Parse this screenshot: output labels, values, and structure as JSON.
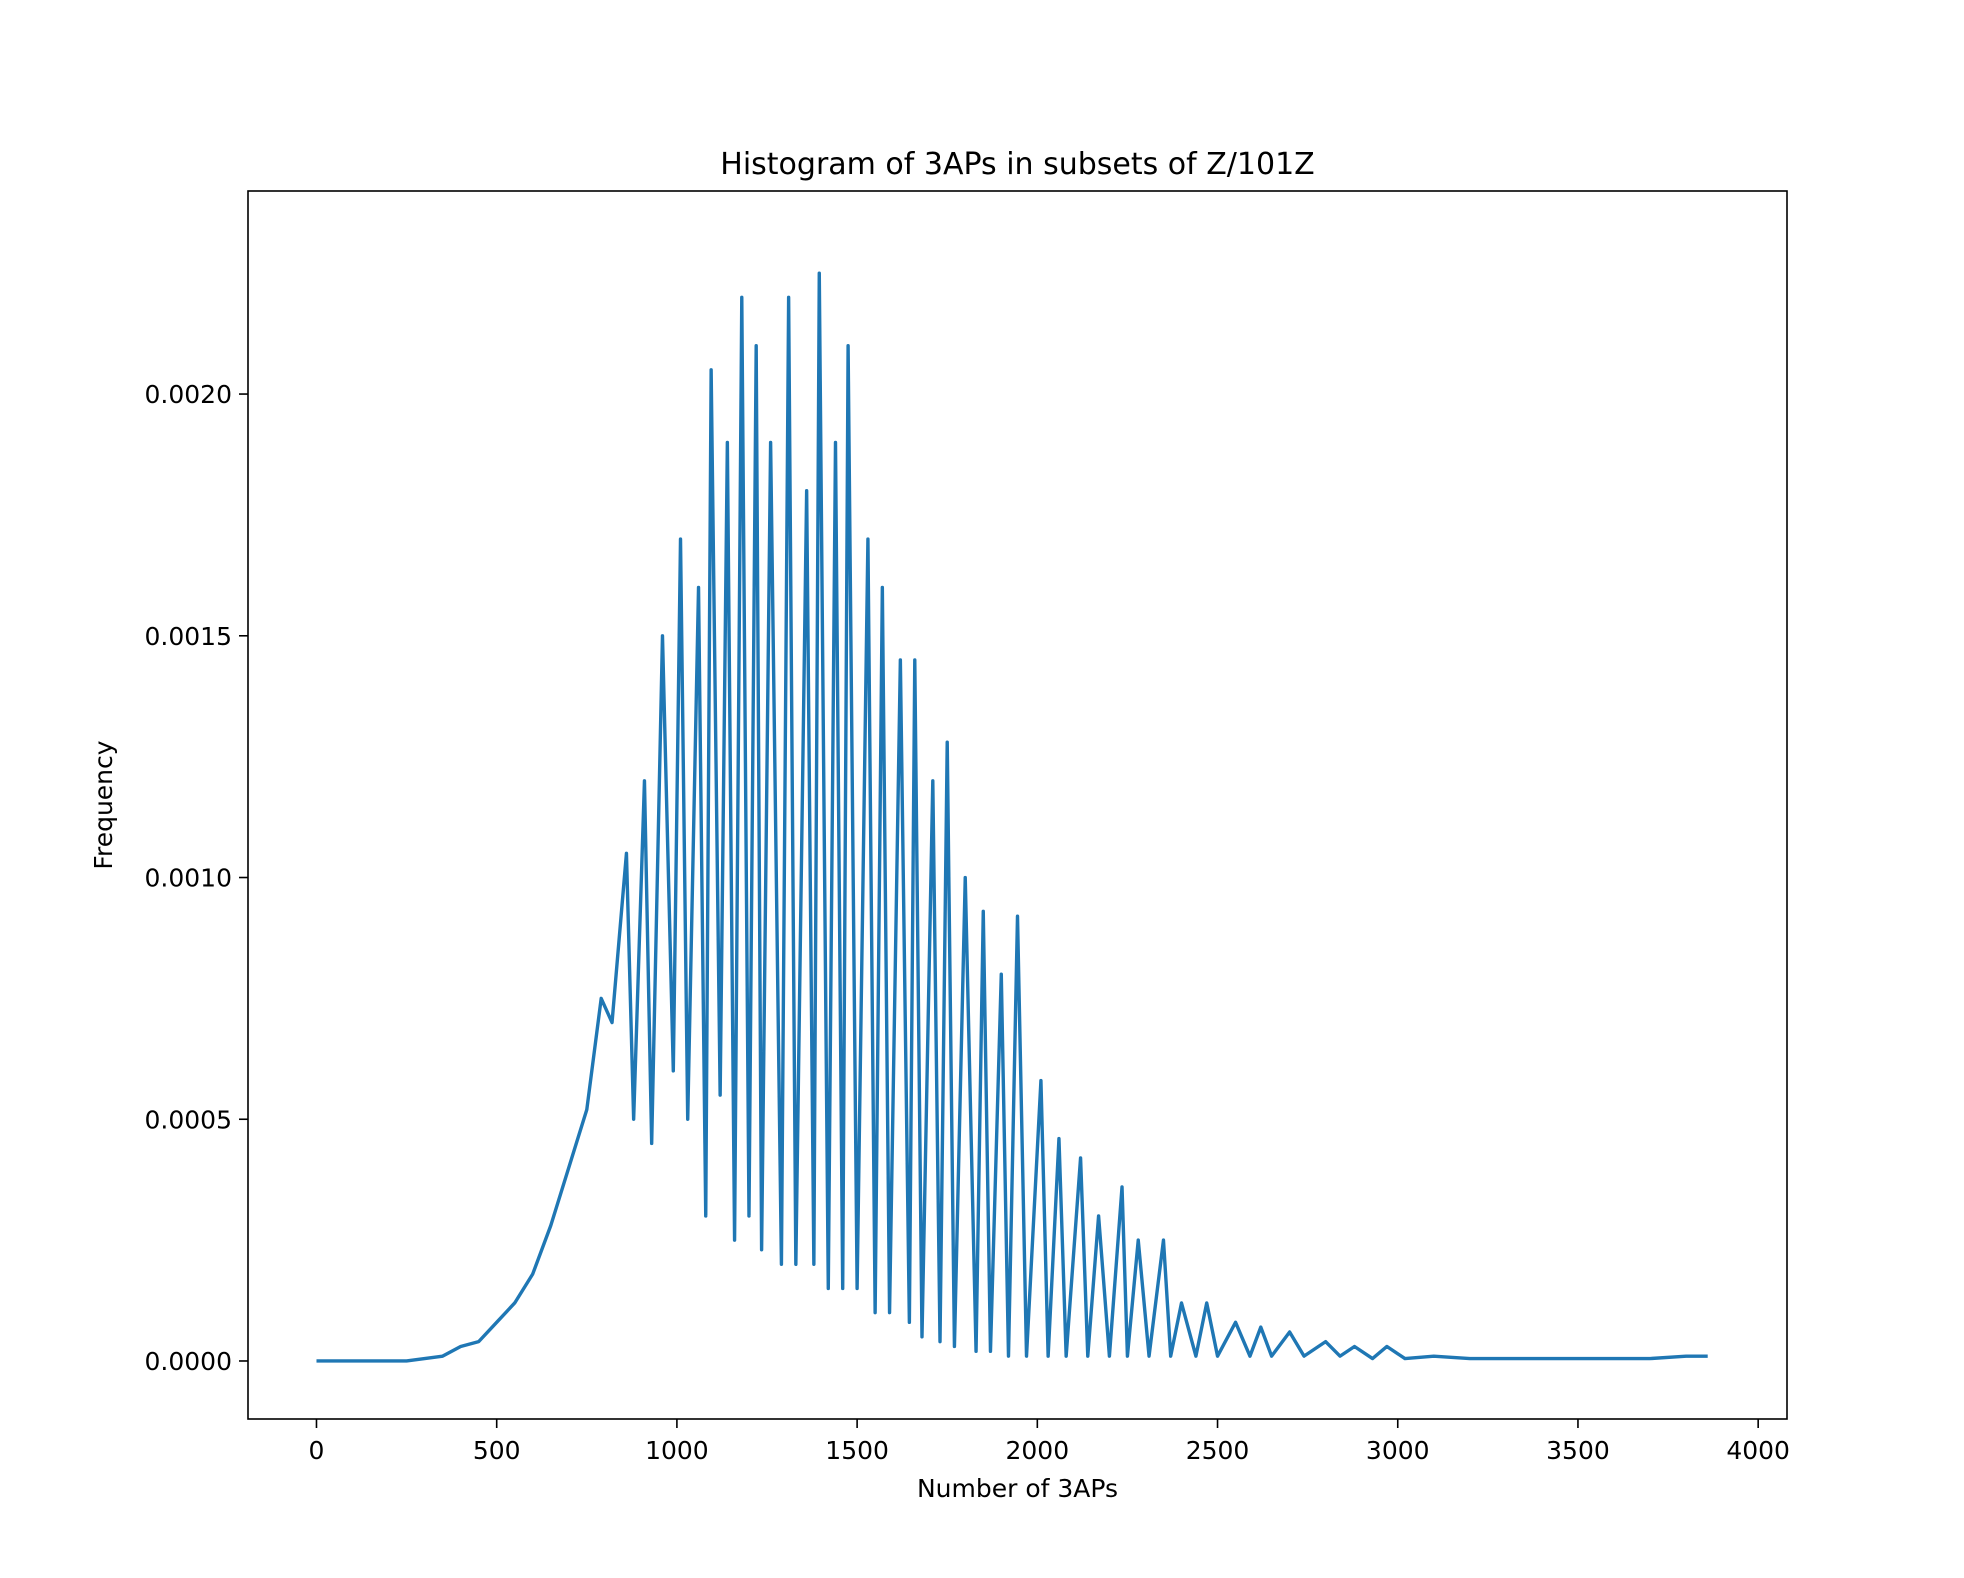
{
  "chart_data": {
    "type": "line",
    "title": "Histogram of 3APs in subsets of Z/101Z",
    "xlabel": "Number of 3APs",
    "ylabel": "Frequency",
    "xlim": [
      -190,
      4080
    ],
    "ylim": [
      -0.00012,
      0.00242
    ],
    "xticks": [
      0,
      500,
      1000,
      1500,
      2000,
      2500,
      3000,
      3500,
      4000
    ],
    "xtick_labels": [
      "0",
      "500",
      "1000",
      "1500",
      "2000",
      "2500",
      "3000",
      "3500",
      "4000"
    ],
    "yticks": [
      0.0,
      0.0005,
      0.001,
      0.0015,
      0.002
    ],
    "ytick_labels": [
      "0.0000",
      "0.0005",
      "0.0010",
      "0.0015",
      "0.0020"
    ],
    "grid": false,
    "line_color": "#1f77b4",
    "series": [
      {
        "x": [
          0,
          250,
          300,
          350,
          400,
          450,
          500,
          550,
          600,
          650,
          700,
          750,
          790,
          820,
          860,
          880,
          910,
          930,
          960,
          990,
          1010,
          1030,
          1060,
          1080,
          1095,
          1120,
          1140,
          1160,
          1180,
          1200,
          1220,
          1235,
          1260,
          1290,
          1310,
          1330,
          1360,
          1380,
          1395,
          1420,
          1440,
          1460,
          1475,
          1500,
          1530,
          1550,
          1570,
          1590,
          1620,
          1645,
          1660,
          1680,
          1710,
          1730,
          1750,
          1770,
          1800,
          1830,
          1850,
          1870,
          1900,
          1920,
          1945,
          1970,
          2010,
          2030,
          2060,
          2080,
          2120,
          2140,
          2170,
          2200,
          2235,
          2250,
          2280,
          2310,
          2350,
          2370,
          2400,
          2440,
          2470,
          2500,
          2550,
          2590,
          2620,
          2650,
          2700,
          2740,
          2800,
          2840,
          2880,
          2930,
          2970,
          3020,
          3100,
          3200,
          3300,
          3400,
          3500,
          3600,
          3700,
          3800,
          3860
        ],
        "y": [
          0,
          0,
          5e-06,
          1e-05,
          3e-05,
          4e-05,
          8e-05,
          0.00012,
          0.00018,
          0.00028,
          0.0004,
          0.00052,
          0.00075,
          0.0007,
          0.00105,
          0.0005,
          0.0012,
          0.00045,
          0.0015,
          0.0006,
          0.0017,
          0.0005,
          0.0016,
          0.0003,
          0.00205,
          0.00055,
          0.0019,
          0.00025,
          0.0022,
          0.0003,
          0.0021,
          0.00023,
          0.0019,
          0.0002,
          0.0022,
          0.0002,
          0.0018,
          0.0002,
          0.00225,
          0.00015,
          0.0019,
          0.00015,
          0.0021,
          0.00015,
          0.0017,
          0.0001,
          0.0016,
          0.0001,
          0.00145,
          8e-05,
          0.00145,
          5e-05,
          0.0012,
          4e-05,
          0.00128,
          3e-05,
          0.001,
          2e-05,
          0.00093,
          2e-05,
          0.0008,
          1e-05,
          0.00092,
          1e-05,
          0.00058,
          1e-05,
          0.00046,
          1e-05,
          0.00042,
          1e-05,
          0.0003,
          1e-05,
          0.00036,
          1e-05,
          0.00025,
          1e-05,
          0.00025,
          1e-05,
          0.00012,
          1e-05,
          0.00012,
          1e-05,
          8e-05,
          1e-05,
          7e-05,
          1e-05,
          6e-05,
          1e-05,
          4e-05,
          1e-05,
          3e-05,
          5e-06,
          3e-05,
          5e-06,
          1e-05,
          5e-06,
          5e-06,
          5e-06,
          5e-06,
          5e-06,
          5e-06,
          1e-05,
          1e-05
        ]
      }
    ]
  }
}
